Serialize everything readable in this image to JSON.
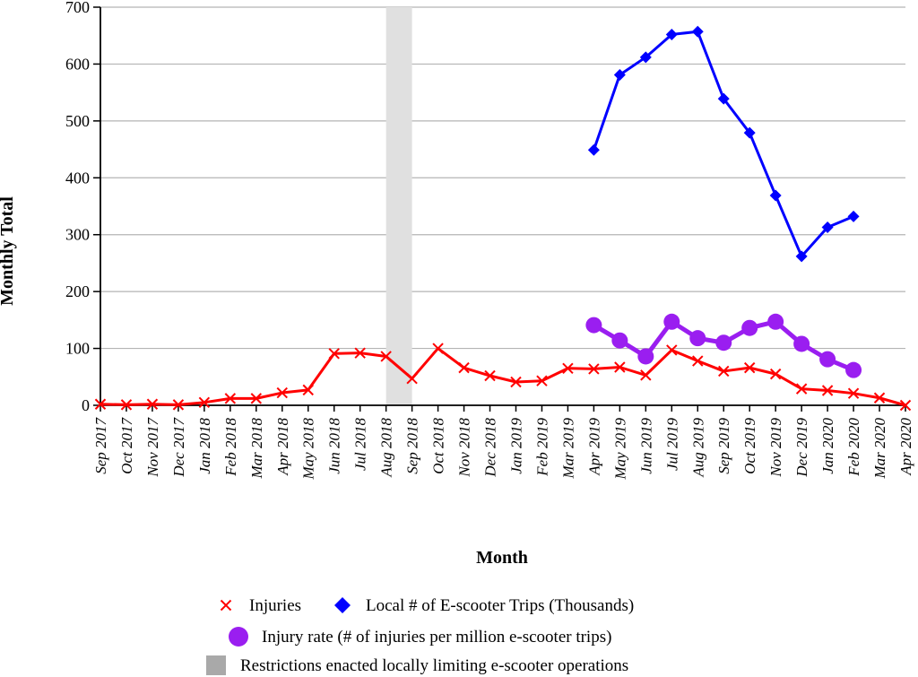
{
  "chart_data": {
    "type": "line",
    "xlabel": "Month",
    "ylabel": "Monthly Total",
    "ylim": [
      0,
      700
    ],
    "yticks": [
      0,
      100,
      200,
      300,
      400,
      500,
      600,
      700
    ],
    "grid": "horizontal",
    "legend_position": "bottom",
    "categories": [
      "Sep 2017",
      "Oct 2017",
      "Nov 2017",
      "Dec 2017",
      "Jan 2018",
      "Feb 2018",
      "Mar 2018",
      "Apr 2018",
      "May 2018",
      "Jun 2018",
      "Jul 2018",
      "Aug 2018",
      "Sep 2018",
      "Oct 2018",
      "Nov 2018",
      "Dec 2018",
      "Jan 2019",
      "Feb 2019",
      "Mar 2019",
      "Apr 2019",
      "May 2019",
      "Jun 2019",
      "Jul 2019",
      "Aug 2019",
      "Sep 2019",
      "Oct 2019",
      "Nov 2019",
      "Dec 2019",
      "Jan 2020",
      "Feb 2020",
      "Mar 2020",
      "Apr 2020"
    ],
    "series": [
      {
        "name": "Injuries",
        "color": "#ff0000",
        "marker": "x",
        "values": [
          2,
          1,
          2,
          1,
          5,
          12,
          12,
          22,
          27,
          91,
          92,
          86,
          47,
          100,
          66,
          52,
          41,
          43,
          65,
          64,
          67,
          53,
          97,
          78,
          60,
          66,
          55,
          29,
          26,
          21,
          13,
          0
        ]
      },
      {
        "name": "Local # of E-scooter Trips (Thousands)",
        "color": "#0000ff",
        "marker": "diamond",
        "values": [
          null,
          null,
          null,
          null,
          null,
          null,
          null,
          null,
          null,
          null,
          null,
          null,
          null,
          null,
          null,
          null,
          null,
          null,
          null,
          449,
          581,
          612,
          652,
          657,
          539,
          479,
          369,
          262,
          313,
          332,
          null,
          null
        ]
      },
      {
        "name": "Injury rate (# of injuries per million e-scooter trips)",
        "color": "#9a1ef0",
        "marker": "circle",
        "values": [
          null,
          null,
          null,
          null,
          null,
          null,
          null,
          null,
          null,
          null,
          null,
          null,
          null,
          null,
          null,
          null,
          null,
          null,
          null,
          141,
          114,
          86,
          147,
          118,
          110,
          136,
          147,
          108,
          81,
          62,
          null,
          null
        ]
      }
    ],
    "shaded_band": {
      "name": "Restrictions enacted locally limiting e-scooter operations",
      "from": "Aug 2018",
      "to": "Sep 2018",
      "color": "#e0e0e0"
    }
  }
}
